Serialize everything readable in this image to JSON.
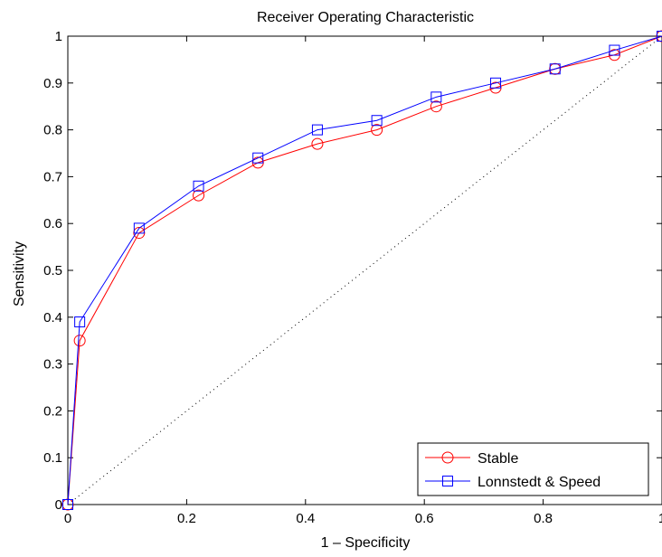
{
  "chart_data": {
    "type": "line",
    "title": "Receiver Operating Characteristic",
    "xlabel": "1 – Specificity",
    "ylabel": "Sensitivity",
    "xlim": [
      0,
      1
    ],
    "ylim": [
      0,
      1
    ],
    "xticks": [
      "0",
      "0.2",
      "0.4",
      "0.6",
      "0.8",
      "1"
    ],
    "yticks": [
      "0",
      "0.1",
      "0.2",
      "0.3",
      "0.4",
      "0.5",
      "0.6",
      "0.7",
      "0.8",
      "0.9",
      "1"
    ],
    "grid": false,
    "legend_position": "bottom-right",
    "series": [
      {
        "name": "Stable",
        "color": "#ff0000",
        "marker": "circle",
        "x": [
          0,
          0.02,
          0.12,
          0.22,
          0.32,
          0.42,
          0.52,
          0.62,
          0.72,
          0.82,
          0.92,
          1.0
        ],
        "y": [
          0,
          0.35,
          0.58,
          0.66,
          0.73,
          0.77,
          0.8,
          0.85,
          0.89,
          0.93,
          0.96,
          1.0
        ]
      },
      {
        "name": "Lonnstedt & Speed",
        "color": "#0000ff",
        "marker": "square",
        "x": [
          0,
          0.02,
          0.12,
          0.22,
          0.32,
          0.42,
          0.52,
          0.62,
          0.72,
          0.82,
          0.92,
          1.0
        ],
        "y": [
          0,
          0.39,
          0.59,
          0.68,
          0.74,
          0.8,
          0.82,
          0.87,
          0.9,
          0.93,
          0.97,
          1.0
        ]
      }
    ],
    "reference_line": {
      "x": [
        0,
        1
      ],
      "y": [
        0,
        1
      ],
      "style": "dotted",
      "color": "#000000"
    }
  }
}
